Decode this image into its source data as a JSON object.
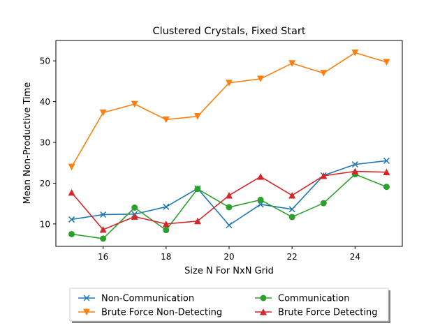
{
  "chart_data": {
    "type": "line",
    "title": "Clustered Crystals, Fixed Start",
    "xlabel": "Size N For NxN Grid",
    "ylabel": "Mean Non-Productive Time",
    "xlim": [
      14.5,
      25.5
    ],
    "ylim": [
      4.5,
      55
    ],
    "xticks": [
      16,
      18,
      20,
      22,
      24
    ],
    "yticks": [
      10,
      20,
      30,
      40,
      50
    ],
    "x": [
      15,
      16,
      17,
      18,
      19,
      20,
      21,
      22,
      23,
      24,
      25
    ],
    "grid": false,
    "legend_position": "below the plot, two columns",
    "series": [
      {
        "name": "Non-Communication",
        "color": "#1f77b4",
        "marker": "x",
        "values": [
          11.1,
          12.3,
          12.4,
          14.2,
          18.7,
          9.7,
          14.8,
          13.6,
          21.9,
          24.6,
          25.5
        ]
      },
      {
        "name": "Brute Force Non-Detecting",
        "color": "#ff7f0e",
        "marker": "triangle-down",
        "values": [
          24.0,
          37.3,
          39.4,
          35.6,
          36.4,
          44.6,
          45.6,
          49.4,
          47.0,
          52.0,
          49.7
        ]
      },
      {
        "name": "Communication",
        "color": "#2ca02c",
        "marker": "circle",
        "values": [
          7.5,
          6.4,
          14.0,
          8.5,
          18.6,
          14.1,
          15.9,
          11.7,
          15.1,
          22.2,
          19.1
        ]
      },
      {
        "name": "Brute Force Detecting",
        "color": "#d62728",
        "marker": "triangle-up",
        "values": [
          17.7,
          8.6,
          11.8,
          10.0,
          10.7,
          17.0,
          21.6,
          17.0,
          21.8,
          22.9,
          22.7
        ]
      }
    ]
  }
}
